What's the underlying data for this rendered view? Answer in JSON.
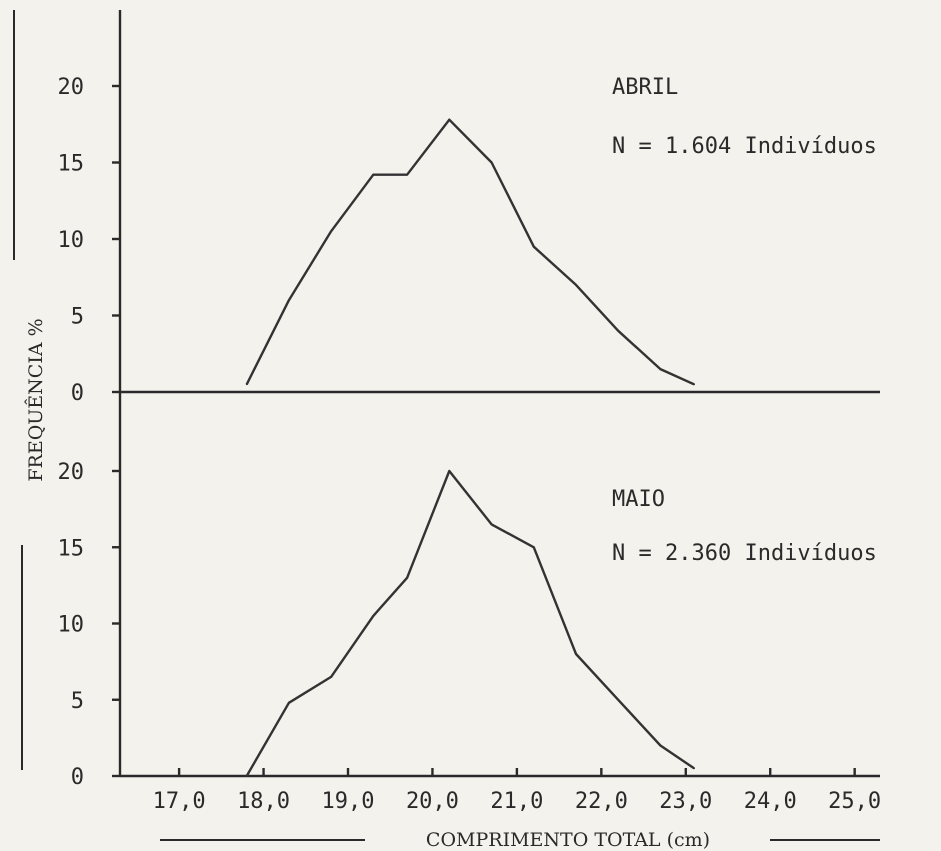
{
  "chart_data": [
    {
      "type": "line",
      "panel": "top",
      "x": [
        17.8,
        18.3,
        18.8,
        19.3,
        19.7,
        20.2,
        20.7,
        21.2,
        21.7,
        22.2,
        22.7,
        23.1
      ],
      "y": [
        0.5,
        6.0,
        10.5,
        14.2,
        14.2,
        17.8,
        15.0,
        9.5,
        7.0,
        4.0,
        1.5,
        0.5
      ],
      "annotation_title": "ABRIL",
      "annotation_n": "N = 1.604 Indivíduos",
      "ylim": [
        0,
        22
      ],
      "yticks": [
        "0",
        "5",
        "10",
        "15",
        "20"
      ]
    },
    {
      "type": "line",
      "panel": "bottom",
      "x": [
        17.8,
        18.3,
        18.8,
        19.3,
        19.7,
        20.2,
        20.7,
        21.2,
        21.7,
        22.2,
        22.7,
        23.1
      ],
      "y": [
        0.0,
        4.8,
        6.5,
        10.5,
        13.0,
        20.0,
        16.5,
        15.0,
        8.0,
        5.0,
        2.0,
        0.5
      ],
      "annotation_title": "MAIO",
      "annotation_n": "N = 2.360 Indivíduos",
      "ylim": [
        0,
        22
      ],
      "yticks": [
        "0",
        "5",
        "10",
        "15",
        "20"
      ]
    }
  ],
  "axes": {
    "ylabel": "FREQUÊNCIA %",
    "xlabel": "COMPRIMENTO TOTAL (cm)",
    "xticks": [
      "17,0",
      "18,0",
      "19,0",
      "20,0",
      "21,0",
      "22,0",
      "23,0",
      "24,0",
      "25,0"
    ],
    "xlim": [
      16.3,
      25.3
    ]
  },
  "colors": {
    "ink": "#2a2a2a",
    "paper": "#f4f2ec"
  }
}
